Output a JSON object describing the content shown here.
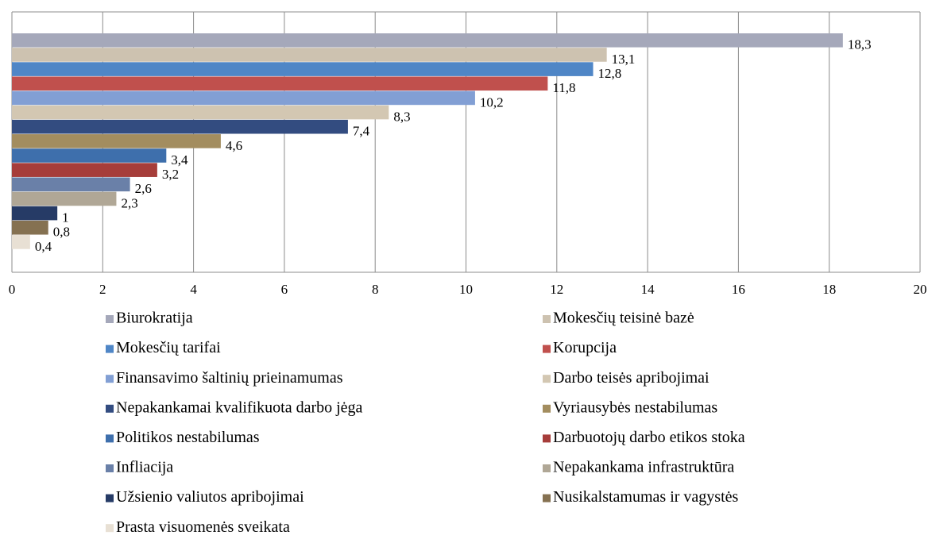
{
  "chart_data": {
    "type": "barh",
    "xlim": [
      0,
      20
    ],
    "xticks": [
      0,
      2,
      4,
      6,
      8,
      10,
      12,
      14,
      16,
      18,
      20
    ],
    "grid": true,
    "legend": "bottom",
    "series": [
      {
        "name": "Biurokratija",
        "color": "#a5a8ba",
        "values": [
          18.3
        ],
        "value_labels": [
          "18,3"
        ]
      },
      {
        "name": "Mokesčių teisinė bazė",
        "color": "#cdc2b0",
        "values": [
          13.1
        ],
        "value_labels": [
          "13,1"
        ]
      },
      {
        "name": "Mokesčių tarifai",
        "color": "#4f86c6",
        "values": [
          12.8
        ],
        "value_labels": [
          "12,8"
        ]
      },
      {
        "name": "Korupcija",
        "color": "#c0504d",
        "values": [
          11.8
        ],
        "value_labels": [
          "11,8"
        ]
      },
      {
        "name": "Finansavimo šaltinių prieinamumas",
        "color": "#829fd4",
        "values": [
          10.2
        ],
        "value_labels": [
          "10,2"
        ]
      },
      {
        "name": "Darbo teisės apribojimai",
        "color": "#d3c7b2",
        "values": [
          8.3
        ],
        "value_labels": [
          "8,3"
        ]
      },
      {
        "name": "Nepakankamai kvalifikuota darbo jėga",
        "color": "#334c80",
        "values": [
          7.4
        ],
        "value_labels": [
          "7,4"
        ]
      },
      {
        "name": "Vyriausybės nestabilumas",
        "color": "#a38d5f",
        "values": [
          4.6
        ],
        "value_labels": [
          "4,6"
        ]
      },
      {
        "name": "Politikos nestabilumas",
        "color": "#3e6fac",
        "values": [
          3.4
        ],
        "value_labels": [
          "3,4"
        ]
      },
      {
        "name": "Darbuotojų darbo etikos stoka",
        "color": "#a63d3a",
        "values": [
          3.2
        ],
        "value_labels": [
          "3,2"
        ]
      },
      {
        "name": "Infliacija",
        "color": "#6a80a8",
        "values": [
          2.6
        ],
        "value_labels": [
          "2,6"
        ]
      },
      {
        "name": "Nepakankama infrastruktūra",
        "color": "#b0a796",
        "values": [
          2.3
        ],
        "value_labels": [
          "2,3"
        ]
      },
      {
        "name": "Užsienio valiutos apribojimai",
        "color": "#263b66",
        "values": [
          1
        ],
        "value_labels": [
          "1"
        ]
      },
      {
        "name": "Nusikalstamumas ir vagystės",
        "color": "#857151",
        "values": [
          0.8
        ],
        "value_labels": [
          "0,8"
        ]
      },
      {
        "name": "Prasta visuomenės sveikata",
        "color": "#e8e0d4",
        "values": [
          0.4
        ],
        "value_labels": [
          "0,4"
        ]
      }
    ]
  }
}
